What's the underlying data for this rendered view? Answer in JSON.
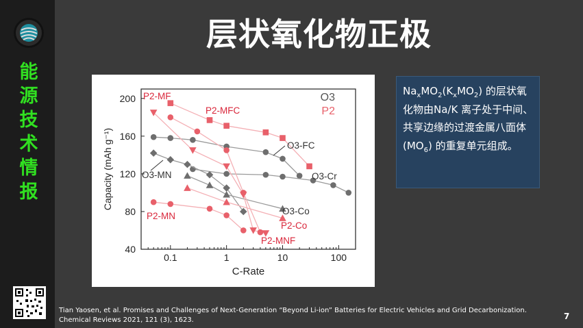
{
  "sidebar": {
    "vertical_title": [
      "能",
      "源",
      "技",
      "术",
      "情",
      "报"
    ],
    "logo_icon": "globe-logo-icon",
    "qr_icon": "qr-code-icon"
  },
  "slide": {
    "title": "层状氧化物正极",
    "page_number": "7",
    "citation": "Tian Yaosen, et al. Promises and Challenges of Next-Generation “Beyond Li-ion” Batteries for Electric Vehicles and Grid Decarbonization. Chemical Reviews 2021, 121 (3), 1623."
  },
  "infobox": {
    "formula_na": "Na",
    "formula_x1": "x",
    "formula_mo": "MO",
    "formula_2a": "2",
    "formula_k_open": "(K",
    "formula_x2": "x",
    "formula_mo2": "MO",
    "formula_2b": "2",
    "formula_close": ")",
    "text_1": " 的层状氧化物由Na/K 离子处于中间、共享边缘的过渡金属八面体 (MO",
    "text_sub6": "6",
    "text_2": ") 的重复单元组成。"
  },
  "colors": {
    "background": "#3a3a3a",
    "sidebar": "#1c1c1c",
    "accent_green": "#31e021",
    "infobox": "#27425f",
    "o3_series": "#6e6e6e",
    "p2_series": "#e8606a"
  },
  "chart_data": {
    "type": "scatter",
    "xlabel": "C-Rate",
    "ylabel": "Capacity (mAh g⁻¹)",
    "xscale": "log",
    "xlim": [
      0.03,
      200
    ],
    "ylim": [
      40,
      210
    ],
    "xticks": [
      "0.1",
      "1",
      "10",
      "100"
    ],
    "yticks": [
      "40",
      "80",
      "120",
      "160",
      "200"
    ],
    "legend": [
      "O3",
      "P2"
    ],
    "series": [
      {
        "name": "O3-FC",
        "family": "O3",
        "marker": "circle",
        "points": [
          [
            0.05,
            159
          ],
          [
            0.1,
            158
          ],
          [
            0.25,
            156
          ],
          [
            1,
            149
          ],
          [
            5,
            143
          ],
          [
            10,
            136
          ],
          [
            20,
            118
          ]
        ]
      },
      {
        "name": "O3-Cr",
        "family": "O3",
        "marker": "circle",
        "points": [
          [
            0.25,
            125
          ],
          [
            1,
            120
          ],
          [
            5,
            119
          ],
          [
            10,
            117
          ],
          [
            35,
            113
          ],
          [
            80,
            108
          ],
          [
            150,
            100
          ]
        ]
      },
      {
        "name": "O3-MN",
        "family": "O3",
        "marker": "diamond",
        "points": [
          [
            0.05,
            142
          ],
          [
            0.1,
            135
          ],
          [
            0.2,
            130
          ],
          [
            0.5,
            119
          ],
          [
            1,
            105
          ],
          [
            2,
            80
          ]
        ]
      },
      {
        "name": "O3-Co",
        "family": "O3",
        "marker": "triangle",
        "points": [
          [
            0.2,
            118
          ],
          [
            0.5,
            108
          ],
          [
            1,
            98
          ],
          [
            10,
            83
          ]
        ]
      },
      {
        "name": "P2-MF",
        "family": "P2",
        "marker": "triangle-down",
        "points": [
          [
            0.05,
            185
          ],
          [
            0.25,
            145
          ],
          [
            1,
            128
          ],
          [
            2,
            98
          ],
          [
            3,
            60
          ],
          [
            5,
            57
          ]
        ]
      },
      {
        "name": "P2-MFC",
        "family": "P2",
        "marker": "square",
        "points": [
          [
            0.1,
            195
          ],
          [
            0.5,
            177
          ],
          [
            1,
            171
          ],
          [
            5,
            164
          ],
          [
            10,
            158
          ],
          [
            30,
            128
          ]
        ]
      },
      {
        "name": "P2-Co",
        "family": "P2",
        "marker": "triangle",
        "points": [
          [
            0.2,
            105
          ],
          [
            1,
            90
          ],
          [
            10,
            73
          ]
        ]
      },
      {
        "name": "P2-MN",
        "family": "P2",
        "marker": "circle",
        "points": [
          [
            0.05,
            90
          ],
          [
            0.1,
            88
          ],
          [
            0.5,
            83
          ],
          [
            1,
            76
          ],
          [
            2,
            60
          ]
        ]
      },
      {
        "name": "P2-MNF",
        "family": "P2",
        "marker": "circle",
        "points": [
          [
            0.1,
            180
          ],
          [
            0.3,
            165
          ],
          [
            1,
            145
          ],
          [
            2,
            100
          ],
          [
            4,
            58
          ]
        ]
      }
    ]
  }
}
